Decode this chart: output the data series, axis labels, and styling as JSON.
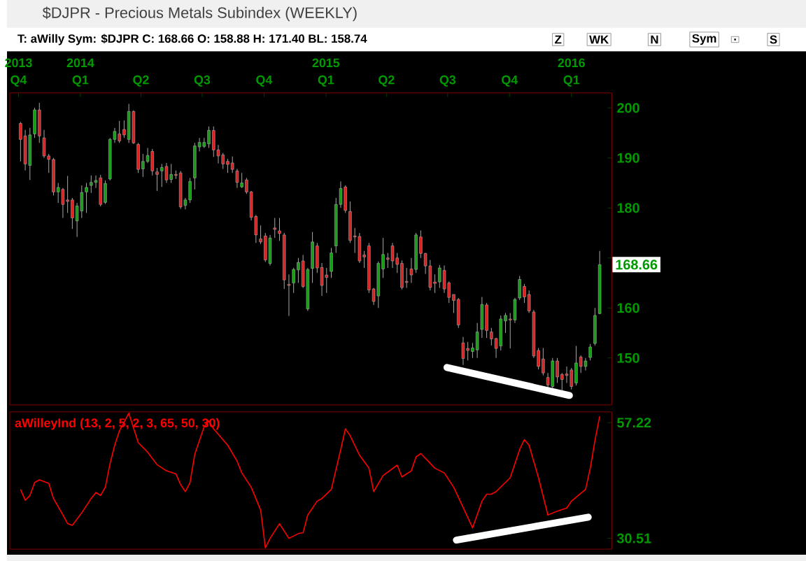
{
  "chart_data": [
    {
      "type": "candlestick",
      "title": "$DJPR - Precious Metals Subindex (WEEKLY)",
      "subtitle": "T: aWilly   Sym: $DJPR   C: 168.66   O: 158.88   H: 171.40   BL: 158.74",
      "annotations": [
        "Z",
        "WK",
        "N",
        "Sym",
        ".",
        "S",
        {
          "text": "168.66",
          "x": "2016-02-12",
          "y": 168.66
        }
      ],
      "x": [
        "2013-10-04",
        "2013-10-11",
        "2013-10-18",
        "2013-10-25",
        "2013-11-01",
        "2013-11-08",
        "2013-11-15",
        "2013-11-22",
        "2013-11-29",
        "2013-12-06",
        "2013-12-13",
        "2013-12-20",
        "2013-12-27",
        "2014-01-03",
        "2014-01-10",
        "2014-01-17",
        "2014-01-24",
        "2014-01-31",
        "2014-02-07",
        "2014-02-14",
        "2014-02-21",
        "2014-02-28",
        "2014-03-07",
        "2014-03-14",
        "2014-03-21",
        "2014-03-28",
        "2014-04-04",
        "2014-04-11",
        "2014-04-18",
        "2014-04-25",
        "2014-05-02",
        "2014-05-09",
        "2014-05-16",
        "2014-05-23",
        "2014-05-30",
        "2014-06-06",
        "2014-06-13",
        "2014-06-20",
        "2014-06-27",
        "2014-07-04",
        "2014-07-11",
        "2014-07-18",
        "2014-07-25",
        "2014-08-01",
        "2014-08-08",
        "2014-08-15",
        "2014-08-22",
        "2014-08-29",
        "2014-09-05",
        "2014-09-12",
        "2014-09-19",
        "2014-09-26",
        "2014-10-03",
        "2014-10-10",
        "2014-10-17",
        "2014-10-24",
        "2014-10-31",
        "2014-11-07",
        "2014-11-14",
        "2014-11-21",
        "2014-11-28",
        "2014-12-05",
        "2014-12-12",
        "2014-12-19",
        "2014-12-26",
        "2015-01-02",
        "2015-01-09",
        "2015-01-16",
        "2015-01-23",
        "2015-01-30",
        "2015-02-06",
        "2015-02-13",
        "2015-02-20",
        "2015-02-27",
        "2015-03-06",
        "2015-03-13",
        "2015-03-20",
        "2015-03-27",
        "2015-04-03",
        "2015-04-10",
        "2015-04-17",
        "2015-04-24",
        "2015-05-01",
        "2015-05-08",
        "2015-05-15",
        "2015-05-22",
        "2015-05-29",
        "2015-06-05",
        "2015-06-12",
        "2015-06-19",
        "2015-06-26",
        "2015-07-03",
        "2015-07-10",
        "2015-07-17",
        "2015-07-24",
        "2015-07-31",
        "2015-08-07",
        "2015-08-14",
        "2015-08-21",
        "2015-08-28",
        "2015-09-04",
        "2015-09-11",
        "2015-09-18",
        "2015-09-25",
        "2015-10-02",
        "2015-10-09",
        "2015-10-16",
        "2015-10-23",
        "2015-10-30",
        "2015-11-06",
        "2015-11-13",
        "2015-11-20",
        "2015-11-27",
        "2015-12-04",
        "2015-12-11",
        "2015-12-18",
        "2015-12-25",
        "2016-01-01",
        "2016-01-08",
        "2016-01-15",
        "2016-01-22",
        "2016-01-29",
        "2016-02-05",
        "2016-02-12"
      ],
      "ohlc": [
        [
          196.9,
          197.2,
          189.3,
          193.7
        ],
        [
          194.4,
          195.6,
          187.5,
          188.8
        ],
        [
          188.5,
          196,
          185.6,
          194.6
        ],
        [
          194.8,
          200,
          194,
          199.6
        ],
        [
          199.6,
          201,
          193,
          194.4
        ],
        [
          194,
          195.6,
          190,
          190.4
        ],
        [
          190.4,
          190.8,
          187,
          189.7
        ],
        [
          189.7,
          190,
          182.5,
          183.2
        ],
        [
          183.2,
          185,
          181,
          184.1
        ],
        [
          183.7,
          184,
          178,
          180.7
        ],
        [
          181.6,
          186.4,
          179,
          181.3
        ],
        [
          181.6,
          182,
          175.8,
          178
        ],
        [
          177.4,
          181,
          174.2,
          180.4
        ],
        [
          179.4,
          184.5,
          178,
          183.1
        ],
        [
          183.2,
          185,
          179,
          184.1
        ],
        [
          184.5,
          186.5,
          183,
          185.1
        ],
        [
          185.1,
          186.5,
          184,
          185.5
        ],
        [
          186,
          186.6,
          180.3,
          180.7
        ],
        [
          181.1,
          185.5,
          180.8,
          184.9
        ],
        [
          185.8,
          194,
          185.5,
          193.7
        ],
        [
          193.7,
          196,
          193,
          195.3
        ],
        [
          194.8,
          197.4,
          193,
          193.4
        ],
        [
          195.7,
          197.5,
          194,
          194.6
        ],
        [
          193.7,
          200.8,
          193,
          199.3
        ],
        [
          199.3,
          199.5,
          192.8,
          193
        ],
        [
          192.7,
          193,
          187,
          187.7
        ],
        [
          187.8,
          190.8,
          186.2,
          189.3
        ],
        [
          189.3,
          192,
          189,
          190.5
        ],
        [
          191.3,
          191.8,
          186.5,
          187.4
        ],
        [
          187.2,
          188,
          183.4,
          186.7
        ],
        [
          187.4,
          188.8,
          184.2,
          188.1
        ],
        [
          188.3,
          189,
          185,
          185.6
        ],
        [
          185.7,
          188.8,
          185,
          186.7
        ],
        [
          186.7,
          187.5,
          185.8,
          186.5
        ],
        [
          187,
          187.4,
          179.8,
          180.2
        ],
        [
          180.5,
          182,
          179.7,
          181.6
        ],
        [
          181.6,
          186,
          181,
          185.3
        ],
        [
          186,
          193,
          183.7,
          192.4
        ],
        [
          192.2,
          194,
          191.3,
          193.1
        ],
        [
          192.3,
          194,
          192,
          193.1
        ],
        [
          192.8,
          196.3,
          192,
          195.5
        ],
        [
          195.5,
          196.3,
          190.2,
          191.6
        ],
        [
          191.6,
          192.6,
          188.9,
          190.4
        ],
        [
          190.6,
          191,
          187.8,
          188.8
        ],
        [
          189.3,
          189.8,
          187,
          188.7
        ],
        [
          189,
          190.3,
          187,
          187.7
        ],
        [
          187.4,
          187.8,
          184,
          185.1
        ],
        [
          184.2,
          187,
          184,
          185
        ],
        [
          185.6,
          186,
          182.8,
          183.2
        ],
        [
          183.2,
          183.4,
          177.5,
          178.1
        ],
        [
          178.3,
          178.6,
          173,
          174.6
        ],
        [
          173.8,
          176.5,
          172.8,
          173.2
        ],
        [
          174.4,
          175,
          169.2,
          169.6
        ],
        [
          168.9,
          174.6,
          168.5,
          174
        ],
        [
          176,
          178,
          174,
          175.7
        ],
        [
          175.4,
          178,
          173.4,
          174.9
        ],
        [
          174.6,
          175,
          163.8,
          165.6
        ],
        [
          164.7,
          166.7,
          158.4,
          164.5
        ],
        [
          165,
          168,
          163,
          167.7
        ],
        [
          167.6,
          170,
          165,
          169.1
        ],
        [
          169.4,
          170.6,
          164,
          164.3
        ],
        [
          159.8,
          168,
          159.4,
          167.7
        ],
        [
          167.9,
          175.2,
          165,
          173.2
        ],
        [
          172.4,
          173,
          167,
          168
        ],
        [
          168.1,
          169,
          162.4,
          164.5
        ],
        [
          166.6,
          168,
          163,
          166.1
        ],
        [
          167.3,
          172,
          166,
          171
        ],
        [
          172.4,
          182,
          171,
          180.7
        ],
        [
          180.7,
          185.3,
          180,
          183.9
        ],
        [
          184.2,
          184.5,
          179,
          179.5
        ],
        [
          179.3,
          181.3,
          173,
          173.5
        ],
        [
          174.4,
          176,
          171,
          174.2
        ],
        [
          174.3,
          175,
          169,
          169.4
        ],
        [
          170.6,
          171.4,
          168,
          170.2
        ],
        [
          172.4,
          173,
          163,
          163.6
        ],
        [
          163.8,
          164,
          160.6,
          161.3
        ],
        [
          162.4,
          169.3,
          160,
          168.9
        ],
        [
          167.8,
          174,
          166,
          170.7
        ],
        [
          170,
          171,
          168,
          169.7
        ],
        [
          172.4,
          173,
          168,
          169.4
        ],
        [
          170,
          171,
          167,
          168.7
        ],
        [
          168.9,
          169.5,
          163.7,
          164.1
        ],
        [
          165.3,
          168,
          164,
          165.1
        ],
        [
          167.8,
          170,
          165,
          166.6
        ],
        [
          167.7,
          175,
          167,
          174.6
        ],
        [
          174.2,
          175.5,
          170,
          170.9
        ],
        [
          170.9,
          171,
          166.8,
          168.4
        ],
        [
          168.4,
          169.6,
          163.5,
          164.1
        ],
        [
          165.2,
          166.7,
          163,
          164.9
        ],
        [
          165.2,
          168.6,
          164,
          168
        ],
        [
          167.5,
          168.5,
          163,
          163.8
        ],
        [
          165,
          165.3,
          161,
          162.1
        ],
        [
          162.7,
          162.7,
          159,
          161.5
        ],
        [
          161.7,
          162,
          156,
          156.6
        ],
        [
          153,
          154.2,
          148.6,
          149.9
        ],
        [
          151.9,
          153.2,
          149.5,
          151.5
        ],
        [
          151.3,
          153,
          150,
          152
        ],
        [
          151.6,
          157,
          150,
          155.2
        ],
        [
          155.7,
          162.2,
          154,
          160.7
        ],
        [
          160.6,
          161,
          154,
          155.5
        ],
        [
          155.2,
          156,
          152.5,
          153.8
        ],
        [
          153.9,
          154,
          150,
          151.9
        ],
        [
          152.4,
          158.5,
          151.5,
          157.8
        ],
        [
          157.4,
          159,
          155,
          158.5
        ],
        [
          157.8,
          159,
          151.9,
          157.6
        ],
        [
          157.6,
          162,
          157,
          161.7
        ],
        [
          162,
          166.4,
          161.6,
          165.7
        ],
        [
          164.3,
          164.8,
          161,
          162.2
        ],
        [
          162.7,
          163.5,
          159,
          159.4
        ],
        [
          159.2,
          159.6,
          150,
          150.4
        ],
        [
          151.5,
          152,
          147.7,
          148.3
        ],
        [
          149.8,
          152,
          146.5,
          147
        ],
        [
          146.1,
          147,
          143.8,
          144.6
        ],
        [
          144.3,
          150,
          143.6,
          149.4
        ],
        [
          149.4,
          150,
          145,
          146.2
        ],
        [
          146.7,
          147,
          142.4,
          145.7
        ],
        [
          146.8,
          148.3,
          145,
          146.5
        ],
        [
          147.6,
          148,
          143.7,
          144.3
        ],
        [
          145,
          152.4,
          144.5,
          149
        ],
        [
          150.2,
          150.5,
          147,
          148.3
        ],
        [
          148.3,
          150,
          147.5,
          149.4
        ],
        [
          150.1,
          152.8,
          149.5,
          152.2
        ],
        [
          152.9,
          160,
          152.5,
          158.5
        ],
        [
          158.88,
          171.4,
          158.74,
          168.66
        ]
      ],
      "series": [
        {
          "type": "line",
          "color": "#ffffff",
          "x": [
            "2015-06-30",
            "2015-12-29"
          ],
          "values": [
            148.1,
            142.5
          ]
        }
      ],
      "xlim": [
        "2013-09-18",
        "2016-03-01"
      ],
      "xticks": [
        {
          "value": "2013-10-01",
          "label": "Q4"
        },
        {
          "value": "2014-01-01",
          "label": "Q1"
        },
        {
          "value": "2014-04-01",
          "label": "Q2"
        },
        {
          "value": "2014-07-01",
          "label": "Q3"
        },
        {
          "value": "2014-10-01",
          "label": "Q4"
        },
        {
          "value": "2015-01-01",
          "label": "Q1"
        },
        {
          "value": "2015-04-01",
          "label": "Q2"
        },
        {
          "value": "2015-07-01",
          "label": "Q3"
        },
        {
          "value": "2015-10-01",
          "label": "Q4"
        },
        {
          "value": "2016-01-01",
          "label": "Q1"
        }
      ],
      "x2lim": [
        "2013-09-18",
        "2016-03-01"
      ],
      "x2ticks": [
        {
          "value": "2013-10-01",
          "label": "2013"
        },
        {
          "value": "2014-01-01",
          "label": "2014"
        },
        {
          "value": "2015-01-01",
          "label": "2015"
        },
        {
          "value": "2016-01-01",
          "label": "2016"
        }
      ],
      "ylim": [
        140.6,
        203
      ],
      "yticks": [
        150,
        160,
        {
          "value": 170,
          "label": null
        },
        180,
        190,
        200
      ]
    },
    {
      "type": "line",
      "series": [
        {
          "name": "aWilleyInd (13, 2, 5, 2, 3, 65, 50, 30)",
          "color": "#ff0000",
          "x": [
            "2013-10-04",
            "2013-10-11",
            "2013-10-18",
            "2013-10-25",
            "2013-11-01",
            "2013-11-15",
            "2013-11-22",
            "2013-12-06",
            "2013-12-13",
            "2013-12-20",
            "2014-01-03",
            "2014-01-17",
            "2014-01-24",
            "2014-01-31",
            "2014-02-07",
            "2014-02-14",
            "2014-02-21",
            "2014-02-28",
            "2014-03-14",
            "2014-03-28",
            "2014-04-11",
            "2014-04-25",
            "2014-05-09",
            "2014-05-23",
            "2014-05-30",
            "2014-06-06",
            "2014-06-13",
            "2014-06-20",
            "2014-07-04",
            "2014-07-11",
            "2014-07-18",
            "2014-08-08",
            "2014-08-22",
            "2014-08-29",
            "2014-09-12",
            "2014-09-26",
            "2014-10-03",
            "2014-10-10",
            "2014-10-24",
            "2014-11-07",
            "2014-11-21",
            "2014-11-28",
            "2014-12-05",
            "2014-12-19",
            "2014-12-26",
            "2015-01-09",
            "2015-01-23",
            "2015-01-30",
            "2015-02-06",
            "2015-02-20",
            "2015-03-06",
            "2015-03-13",
            "2015-03-27",
            "2015-04-17",
            "2015-04-24",
            "2015-05-08",
            "2015-05-15",
            "2015-05-22",
            "2015-06-12",
            "2015-06-26",
            "2015-07-10",
            "2015-07-31",
            "2015-08-07",
            "2015-08-21",
            "2015-08-28",
            "2015-09-04",
            "2015-09-11",
            "2015-10-02",
            "2015-10-16",
            "2015-10-23",
            "2015-10-30",
            "2015-11-13",
            "2015-11-27",
            "2015-12-11",
            "2015-12-25",
            "2016-01-01",
            "2016-01-22",
            "2016-01-29",
            "2016-02-05",
            "2016-02-12"
          ],
          "values": [
            41.8,
            39.3,
            40.4,
            43.4,
            44.0,
            43.2,
            39.7,
            35.9,
            33.9,
            33.5,
            36.4,
            39.7,
            41.1,
            40.4,
            42.3,
            47.7,
            52.0,
            55.3,
            59.4,
            52.6,
            50.4,
            47.5,
            46.1,
            45.4,
            42.9,
            41.3,
            43.4,
            49.9,
            56.3,
            57.6,
            55.8,
            52.0,
            48.3,
            45.6,
            42.3,
            37.0,
            28.3,
            30.5,
            33.9,
            30.5,
            31.6,
            31.8,
            35.9,
            39.1,
            39.7,
            41.8,
            51.0,
            55.8,
            54.2,
            49.7,
            46.7,
            41.3,
            45.0,
            47.4,
            44.7,
            46.1,
            49.3,
            50.1,
            46.7,
            45.6,
            42.3,
            35.3,
            32.9,
            39.1,
            40.7,
            40.7,
            41.3,
            44.5,
            51.0,
            53.3,
            52.0,
            44.5,
            35.9,
            36.8,
            37.5,
            39.1,
            41.8,
            46.7,
            53.1,
            58.7
          ]
        },
        {
          "color": "#ffffff",
          "x": [
            "2015-07-14",
            "2016-01-26"
          ],
          "values": [
            30.1,
            35.4
          ]
        }
      ],
      "xlim": [
        "2013-09-18",
        "2016-03-01"
      ],
      "ylim": [
        28.0,
        59.7
      ],
      "yticks": [
        30.51,
        57.22
      ],
      "tick_labels": "y"
    }
  ]
}
